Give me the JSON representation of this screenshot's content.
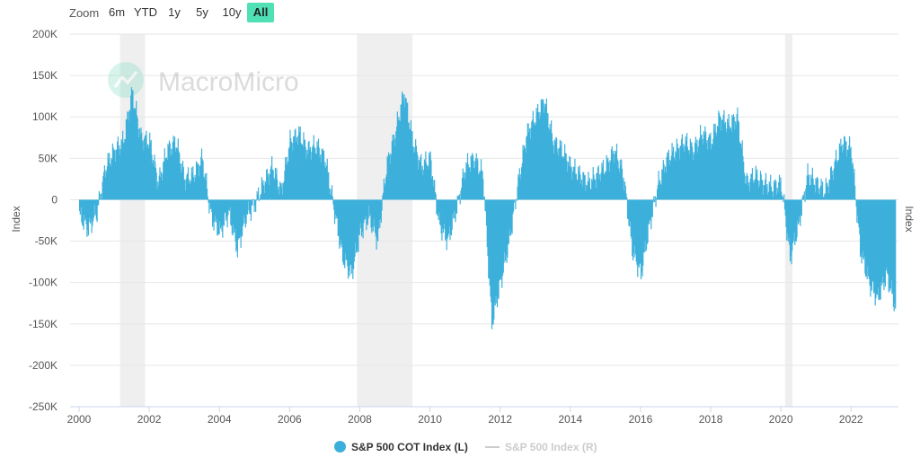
{
  "zoom": {
    "label": "Zoom",
    "buttons": [
      "6m",
      "YTD",
      "1y",
      "5y",
      "10y",
      "All"
    ],
    "active": "All",
    "active_color": "#4fe0b6"
  },
  "watermark": {
    "text": "MacroMicro"
  },
  "legend": {
    "series1": "S&P 500 COT Index (L)",
    "series2": "S&P 500 Index (R)"
  },
  "chart_data": {
    "type": "bar",
    "ylabel_left": "Index",
    "ylabel_right": "Index",
    "ylim": [
      -250000,
      200000
    ],
    "y_ticks": [
      "200K",
      "150K",
      "100K",
      "50K",
      "0",
      "-50K",
      "-100K",
      "-150K",
      "-200K",
      "-250K"
    ],
    "x_ticks": [
      "2000",
      "2002",
      "2004",
      "2006",
      "2008",
      "2010",
      "2012",
      "2014",
      "2016",
      "2018",
      "2020",
      "2022"
    ],
    "xlim": [
      2000.0,
      2023.35
    ],
    "grid": true,
    "legend_position": "bottom-center",
    "bar_color": "#3cb0db",
    "line_color": "#cccccc",
    "shaded_periods": [
      [
        2001.17,
        2001.88
      ],
      [
        2007.92,
        2009.5
      ],
      [
        2020.12,
        2020.33
      ]
    ],
    "series": [
      {
        "name": "S&P 500 COT Index (L)",
        "x": [
          2000.0,
          2000.25,
          2000.5,
          2000.75,
          2001.0,
          2001.25,
          2001.5,
          2001.75,
          2002.0,
          2002.25,
          2002.5,
          2002.75,
          2003.0,
          2003.25,
          2003.5,
          2003.75,
          2004.0,
          2004.25,
          2004.5,
          2004.75,
          2005.0,
          2005.25,
          2005.5,
          2005.75,
          2006.0,
          2006.25,
          2006.5,
          2006.75,
          2007.0,
          2007.25,
          2007.5,
          2007.75,
          2008.0,
          2008.25,
          2008.5,
          2008.75,
          2009.0,
          2009.25,
          2009.5,
          2009.75,
          2010.0,
          2010.25,
          2010.5,
          2010.75,
          2011.0,
          2011.25,
          2011.5,
          2011.75,
          2012.0,
          2012.25,
          2012.5,
          2012.75,
          2013.0,
          2013.25,
          2013.5,
          2013.75,
          2014.0,
          2014.25,
          2014.5,
          2014.75,
          2015.0,
          2015.25,
          2015.5,
          2015.75,
          2016.0,
          2016.25,
          2016.5,
          2016.75,
          2017.0,
          2017.25,
          2017.5,
          2017.75,
          2018.0,
          2018.25,
          2018.5,
          2018.75,
          2019.0,
          2019.25,
          2019.5,
          2019.75,
          2020.0,
          2020.25,
          2020.5,
          2020.75,
          2021.0,
          2021.25,
          2021.5,
          2021.75,
          2022.0,
          2022.25,
          2022.5,
          2022.75,
          2023.0,
          2023.25
        ],
        "values": [
          -20000,
          -35000,
          -15000,
          40000,
          60000,
          70000,
          130000,
          75000,
          70000,
          20000,
          60000,
          70000,
          25000,
          30000,
          50000,
          -20000,
          -40000,
          -15000,
          -60000,
          -20000,
          -5000,
          20000,
          40000,
          10000,
          70000,
          80000,
          60000,
          65000,
          50000,
          -10000,
          -70000,
          -90000,
          -40000,
          -20000,
          -50000,
          40000,
          80000,
          130000,
          70000,
          40000,
          50000,
          -30000,
          -50000,
          -10000,
          40000,
          50000,
          30000,
          -150000,
          -100000,
          -50000,
          20000,
          80000,
          100000,
          120000,
          70000,
          60000,
          40000,
          30000,
          20000,
          30000,
          40000,
          60000,
          30000,
          -60000,
          -90000,
          -30000,
          20000,
          50000,
          60000,
          70000,
          60000,
          80000,
          70000,
          100000,
          90000,
          100000,
          20000,
          30000,
          20000,
          15000,
          20000,
          -70000,
          -30000,
          30000,
          20000,
          10000,
          40000,
          70000,
          60000,
          -60000,
          -100000,
          -120000,
          -90000,
          -130000
        ]
      },
      {
        "name": "S&P 500 Index (R)",
        "x": [],
        "values": []
      }
    ]
  }
}
